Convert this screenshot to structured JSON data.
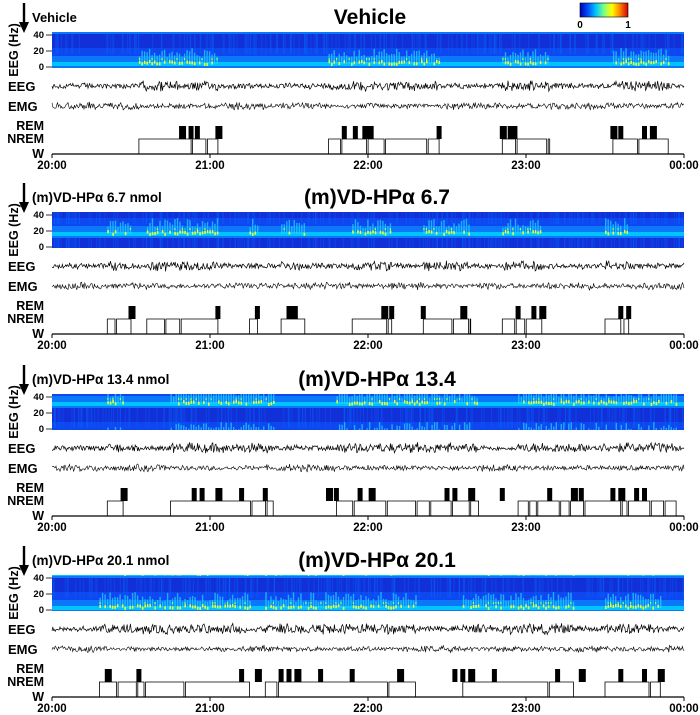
{
  "figure": {
    "colorbar": {
      "min_label": "0",
      "max_label": "1",
      "colormap": [
        "#0000b0",
        "#0050ff",
        "#00c8ff",
        "#7fff7f",
        "#ffff00",
        "#ff8000",
        "#d00000"
      ]
    },
    "x_ticks": [
      "20:00",
      "21:00",
      "22:00",
      "23:00",
      "00:00"
    ],
    "spectrogram_ylabel": "EEG (Hz)",
    "spectrogram_ticks": [
      "40",
      "20",
      "0"
    ],
    "trace_labels": {
      "eeg": "EEG",
      "emg": "EMG"
    },
    "stage_labels": [
      "REM",
      "NREM",
      "W"
    ]
  },
  "chart_data": [
    {
      "type": "hypnogram",
      "title": "Vehicle",
      "annotation": "Vehicle",
      "x_range_hours": [
        20,
        24
      ],
      "sleep_blocks": [
        [
          20.55,
          21.05
        ],
        [
          21.75,
          22.45
        ],
        [
          22.85,
          23.15
        ],
        [
          23.55,
          23.9
        ]
      ],
      "rem_times": [
        20.82,
        20.88,
        20.92,
        21.05,
        21.85,
        21.92,
        21.98,
        22.02,
        22.45,
        22.85,
        22.9,
        22.93,
        23.55,
        23.6,
        23.75,
        23.8
      ],
      "spectral_scale": 1.0
    },
    {
      "type": "hypnogram",
      "title": "(m)VD-HPα 6.7",
      "annotation": "(m)VD-HPα 6.7 nmol",
      "x_range_hours": [
        20,
        24
      ],
      "sleep_blocks": [
        [
          20.35,
          20.5
        ],
        [
          20.6,
          21.05
        ],
        [
          21.25,
          21.3
        ],
        [
          21.45,
          21.6
        ],
        [
          21.9,
          22.15
        ],
        [
          22.35,
          22.65
        ],
        [
          22.85,
          23.1
        ],
        [
          23.5,
          23.6
        ],
        [
          23.62,
          23.65
        ]
      ],
      "rem_times": [
        20.5,
        21.05,
        21.3,
        21.5,
        21.52,
        21.54,
        22.1,
        22.15,
        22.35,
        22.6,
        22.95,
        23.05,
        23.1,
        23.6,
        23.65
      ],
      "spectral_scale": 0.95
    },
    {
      "type": "hypnogram",
      "title": "(m)VD-HPα 13.4",
      "annotation": "(m)VD-HPα 13.4 nmol",
      "x_range_hours": [
        20,
        24
      ],
      "sleep_blocks": [
        [
          20.35,
          20.45
        ],
        [
          20.75,
          21.4
        ],
        [
          21.8,
          22.7
        ],
        [
          22.95,
          23.95
        ]
      ],
      "rem_times": [
        20.45,
        20.9,
        20.95,
        21.05,
        21.2,
        21.35,
        21.75,
        21.8,
        21.95,
        22.02,
        22.5,
        22.55,
        22.65,
        22.85,
        23.15,
        23.3,
        23.35,
        23.55,
        23.6,
        23.7,
        23.75
      ],
      "spectral_scale": 1.05
    },
    {
      "type": "hypnogram",
      "title": "(m)VD-HPα 20.1",
      "annotation": "(m)VD-HPα 20.1 nmol",
      "x_range_hours": [
        20,
        24
      ],
      "sleep_blocks": [
        [
          20.3,
          21.25
        ],
        [
          21.35,
          22.3
        ],
        [
          22.6,
          23.3
        ],
        [
          23.5,
          23.85
        ]
      ],
      "rem_times": [
        20.35,
        20.55,
        21.2,
        21.3,
        21.45,
        21.5,
        21.55,
        21.7,
        21.9,
        22.2,
        22.55,
        22.6,
        22.65,
        22.8,
        23.2,
        23.35,
        23.6,
        23.75,
        23.85
      ],
      "spectral_scale": 1.0
    }
  ]
}
